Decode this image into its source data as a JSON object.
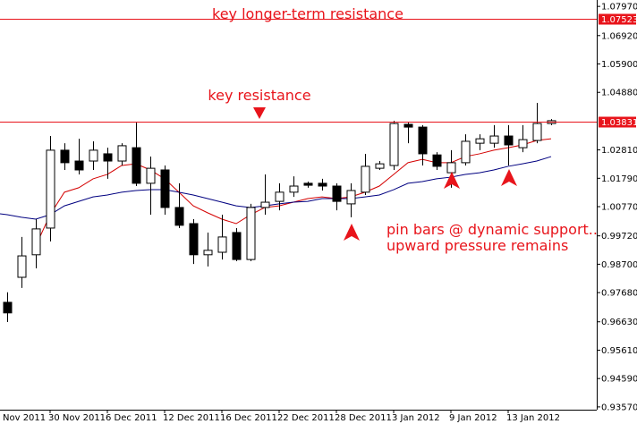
{
  "chart_data": {
    "type": "candlestick",
    "annotations": [
      "key longer-term resistance",
      "key resistance",
      "pin bars @ dynamic support..",
      "upward pressure remains"
    ],
    "categories": [
      "Nov 2011",
      null,
      null,
      null,
      "30 Nov 2011",
      null,
      null,
      null,
      "6 Dec 2011",
      null,
      null,
      null,
      "12 Dec 2011",
      null,
      null,
      null,
      "16 Dec 2011",
      null,
      null,
      null,
      "22 Dec 2011",
      null,
      null,
      null,
      "28 Dec 2011",
      null,
      null,
      null,
      "3 Jan 2012",
      null,
      null,
      null,
      "9 Jan 2012",
      null,
      null,
      null,
      "13 Jan 2012",
      null,
      null,
      null
    ],
    "open": [
      null,
      0.9733,
      0.9823,
      0.9904,
      1.0,
      1.028,
      1.0241,
      1.0241,
      1.0267,
      1.0241,
      1.0289,
      1.0161,
      1.0209,
      1.0074,
      1.0016,
      0.9904,
      0.9913,
      0.9984,
      0.9887,
      1.0074,
      1.0096,
      1.0129,
      1.0161,
      1.0161,
      1.0151,
      1.0087,
      1.0129,
      1.0215,
      1.0225,
      1.0373,
      1.0363,
      1.0263,
      1.0199,
      1.0235,
      1.0305,
      1.0305,
      1.0331,
      1.0289,
      1.0315,
      1.0376
    ],
    "high": [
      null,
      0.9769,
      0.9968,
      1.0032,
      1.0331,
      1.0305,
      1.0321,
      1.0312,
      1.0289,
      1.0305,
      1.0379,
      1.0257,
      1.0225,
      1.0161,
      1.0032,
      0.9984,
      1.0048,
      1.0,
      1.0087,
      1.0193,
      1.0161,
      1.0186,
      1.0167,
      1.0177,
      1.0161,
      1.0161,
      1.0267,
      1.0241,
      1.0386,
      1.0379,
      1.037,
      1.0273,
      1.028,
      1.0337,
      1.0337,
      1.037,
      1.037,
      1.037,
      1.045,
      1.0392
    ],
    "low": [
      null,
      0.9662,
      0.9785,
      0.9855,
      0.9952,
      1.0209,
      1.0193,
      1.0209,
      1.0177,
      1.0225,
      1.0151,
      1.0048,
      1.0048,
      1.0,
      0.9871,
      0.9862,
      0.9887,
      0.9881,
      0.9881,
      1.0048,
      1.0064,
      1.0112,
      1.0145,
      1.0135,
      1.0064,
      1.0039,
      1.0119,
      1.0209,
      1.0209,
      1.0305,
      1.0225,
      1.0209,
      1.0145,
      1.0225,
      1.028,
      1.0289,
      1.0225,
      1.0273,
      1.0305,
      1.037
    ],
    "close": [
      null,
      0.9695,
      0.99,
      0.9997,
      1.028,
      1.0235,
      1.0209,
      1.028,
      1.0241,
      1.0296,
      1.0161,
      1.0215,
      1.0074,
      1.001,
      0.9904,
      0.992,
      0.9968,
      0.9887,
      1.0074,
      1.0093,
      1.0129,
      1.0151,
      1.0154,
      1.0151,
      1.0096,
      1.0135,
      1.0222,
      1.0231,
      1.0376,
      1.0363,
      1.0267,
      1.0222,
      1.0235,
      1.0312,
      1.0321,
      1.0331,
      1.0299,
      1.0318,
      1.0376,
      1.0386
    ],
    "up_color": "#ffffff",
    "down_color": "#000000",
    "lines": [
      {
        "color": "#d40000",
        "values": [
          null,
          null,
          null,
          0.9936,
          1.0048,
          1.0129,
          1.0145,
          1.0177,
          1.0193,
          1.0225,
          1.0231,
          1.0209,
          1.0177,
          1.0129,
          1.008,
          1.0055,
          1.0032,
          1.0016,
          1.0048,
          1.0074,
          1.008,
          1.0093,
          1.0106,
          1.0112,
          1.0106,
          1.0112,
          1.0129,
          1.0151,
          1.0193,
          1.0235,
          1.0247,
          1.0235,
          1.0235,
          1.0257,
          1.0267,
          1.028,
          1.0289,
          1.0299,
          1.0315,
          1.0321
        ]
      },
      {
        "color": "#000080",
        "values": [
          1.0055,
          1.0048,
          1.0039,
          1.0032,
          1.0048,
          1.008,
          1.0096,
          1.0112,
          1.0119,
          1.0129,
          1.0135,
          1.0138,
          1.0138,
          1.0129,
          1.0119,
          1.0106,
          1.0093,
          1.008,
          1.0074,
          1.008,
          1.0087,
          1.0093,
          1.0096,
          1.0106,
          1.0106,
          1.0106,
          1.0112,
          1.0119,
          1.0138,
          1.0161,
          1.0167,
          1.0177,
          1.0183,
          1.0193,
          1.0199,
          1.0209,
          1.0222,
          1.0231,
          1.0241,
          1.0257
        ]
      }
    ],
    "hlines": [
      {
        "value": 1.07523,
        "label": "1.07523",
        "color": "#e8141b"
      },
      {
        "value": 1.03831,
        "label": "1.03831",
        "color": "#e8141b"
      }
    ],
    "ylim": [
      0.9347,
      1.082
    ],
    "yticks": [
      {
        "value": 1.0797,
        "label": "1.07970"
      },
      {
        "value": 1.0692,
        "label": "1.06920"
      },
      {
        "value": 1.059,
        "label": "1.05900"
      },
      {
        "value": 1.0488,
        "label": "1.04880"
      },
      {
        "value": 1.0281,
        "label": "1.02810"
      },
      {
        "value": 1.0179,
        "label": "1.01790"
      },
      {
        "value": 1.0077,
        "label": "1.00770"
      },
      {
        "value": 0.9972,
        "label": "0.99720"
      },
      {
        "value": 0.987,
        "label": "0.98700"
      },
      {
        "value": 0.9768,
        "label": "0.97680"
      },
      {
        "value": 0.9663,
        "label": "0.96630"
      },
      {
        "value": 0.9561,
        "label": "0.95610"
      },
      {
        "value": 0.9459,
        "label": "0.94590"
      },
      {
        "value": 0.9357,
        "label": "0.93570"
      }
    ]
  }
}
